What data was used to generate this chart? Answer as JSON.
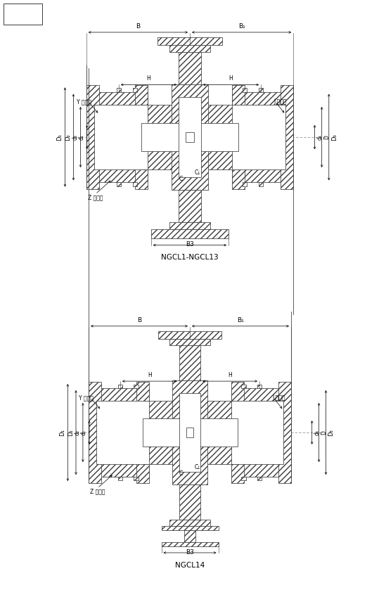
{
  "bg_color": "#ffffff",
  "line_color": "#3a3a3a",
  "title1": "NGCL1-NGCL13",
  "title2": "NGCL14",
  "label_Y": "Y 型轴孔",
  "label_J": "J 型轴孔",
  "label_Z": "Z 型轴孔",
  "label_B": "B",
  "label_B1": "B₁",
  "label_B3": "B3",
  "label_H": "H",
  "label_C": "C",
  "label_C1": "C₁",
  "label_D1": "D₁",
  "label_D2": "D₂",
  "label_d2": "d₂",
  "label_d1": "d₁",
  "label_d4": "d₄",
  "label_D": "D",
  "label_D3": "D₃",
  "figsize": [
    5.49,
    8.49
  ],
  "dpi": 100
}
